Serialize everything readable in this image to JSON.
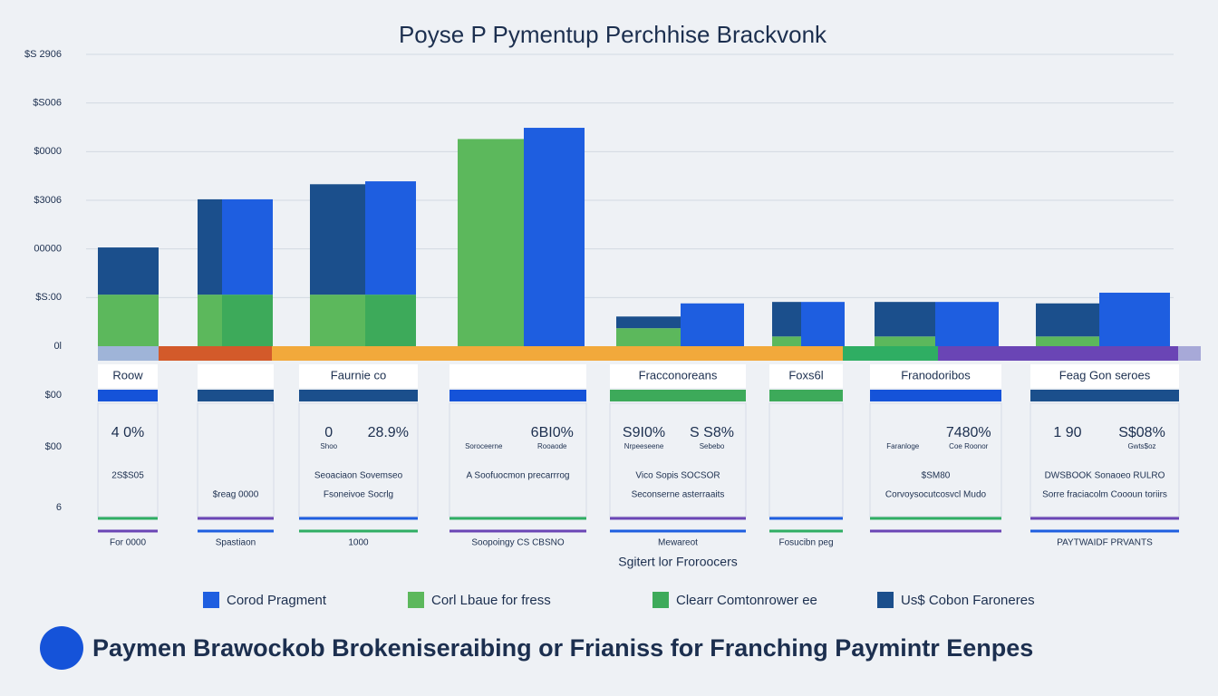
{
  "chart_data": {
    "type": "bar",
    "title": "Poyse P Pymentup Perchhise Brackvonk",
    "categories": [
      "Roow",
      null,
      "Faurnie co",
      null,
      "Fracconoreans",
      "Foxs6l",
      "Franodoribos",
      "Feag Gon seroes"
    ],
    "series": [
      {
        "name": "Corod Pragment",
        "color": "#1e5ee0",
        "values": [
          0,
          1.96,
          2.33,
          4.49,
          0.88,
          0.91,
          0.91,
          1.1
        ]
      },
      {
        "name": "Corl Lbaue for fress",
        "color": "#5cb85c",
        "values": [
          1.06,
          1.06,
          1.06,
          4.26,
          0.37,
          0.2,
          0.2,
          0.2
        ]
      },
      {
        "name": "Clearr Comtonrower ee",
        "color": "#3daa5a",
        "values": [
          0,
          1.06,
          1.06,
          0,
          0,
          0,
          0,
          0
        ]
      },
      {
        "name": "Us$ Cobon Faroneres",
        "color": "#1b4f8c",
        "values": [
          0.97,
          1.96,
          2.27,
          0,
          0.24,
          0.71,
          0.71,
          0.68
        ]
      }
    ],
    "ylim": [
      0,
      6
    ],
    "yticks": [
      {
        "value": 0,
        "label": "0l"
      },
      {
        "value": 1,
        "label": "$S:00"
      },
      {
        "value": 2,
        "label": "00000"
      },
      {
        "value": 3,
        "label": "$3006"
      },
      {
        "value": 4,
        "label": "$0000"
      },
      {
        "value": 5,
        "label": "$S006"
      },
      {
        "value": 6,
        "label": "$S 2906"
      }
    ],
    "grid": true
  },
  "panels": [
    {
      "stats": [
        "4 0%"
      ],
      "notes": [],
      "rows": [
        "2S$S05",
        "",
        "For 0000"
      ]
    },
    {
      "stats": [],
      "notes": [],
      "rows": [
        "",
        "$reag 0000",
        "Spastiaon"
      ]
    },
    {
      "stats": [
        "0",
        "28.9%"
      ],
      "notes": [
        "Shoo",
        ""
      ],
      "rows": [
        "Seoaciaon Sovemseo",
        "Fsoneivoe Socrlg",
        "1000"
      ]
    },
    {
      "stats": [
        "",
        "6BI0%"
      ],
      "notes": [
        "Soroceerne",
        "Rooaode"
      ],
      "rows": [
        "A Soofuocmon precarrrog",
        "",
        "Soopoingy CS CBSNO"
      ]
    },
    {
      "stats": [
        "S9I0%",
        "S S8%"
      ],
      "notes": [
        "Nrpeeseene",
        "Sebebo"
      ],
      "rows": [
        "Vico Sopis SOCSOR",
        "Seconserne asterraaits",
        "Mewareot"
      ]
    },
    {
      "stats": [],
      "notes": [],
      "rows": [
        "",
        "",
        "Fosucibn peg"
      ]
    },
    {
      "stats": [
        "",
        "7480%"
      ],
      "notes": [
        "Faranloge",
        "Coe Roonor"
      ],
      "rows": [
        "$SM80",
        "Corvoysocutcosvcl Mudo",
        ""
      ]
    },
    {
      "stats": [
        "1 90",
        "S$08%"
      ],
      "notes": [
        "",
        "Gwts$oz"
      ],
      "rows": [
        "DWSBOOK Sonaoeo RULRO",
        "Sorre fraciacolm Coooun toriirs",
        "PAYTWAIDF PRVANTS"
      ]
    }
  ],
  "side_labels": [
    "$00",
    "$00",
    "6"
  ],
  "caption": "Sgitert lor Froroocers",
  "footer": "Paymen Brawockob Brokeniseraibing or Frianiss for Franching Paymintr Eenpes"
}
